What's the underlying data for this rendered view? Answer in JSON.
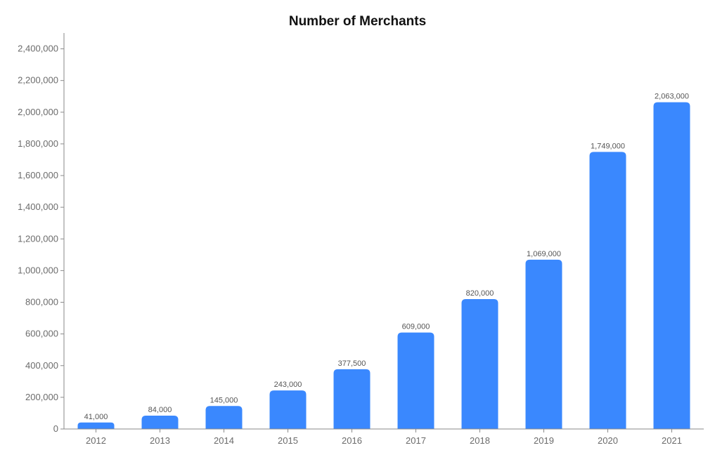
{
  "chart_data": {
    "type": "bar",
    "title": "Number of Merchants",
    "xlabel": "",
    "ylabel": "",
    "categories": [
      "2012",
      "2013",
      "2014",
      "2015",
      "2016",
      "2017",
      "2018",
      "2019",
      "2020",
      "2021"
    ],
    "values": [
      41000,
      84000,
      145000,
      243000,
      377500,
      609000,
      820000,
      1069000,
      1749000,
      2063000
    ],
    "data_labels": [
      "41,000",
      "84,000",
      "145,000",
      "243,000",
      "377,500",
      "609,000",
      "820,000",
      "1,069,000",
      "1,749,000",
      "2,063,000"
    ],
    "y_ticks": [
      "0",
      "200,000",
      "400,000",
      "600,000",
      "800,000",
      "1,000,000",
      "1,200,000",
      "1,400,000",
      "1,600,000",
      "1,800,000",
      "2,000,000",
      "2,200,000",
      "2,400,000"
    ],
    "ylim": [
      0,
      2500000
    ],
    "bar_color": "#3a88fe",
    "grid": false,
    "legend": "none"
  }
}
